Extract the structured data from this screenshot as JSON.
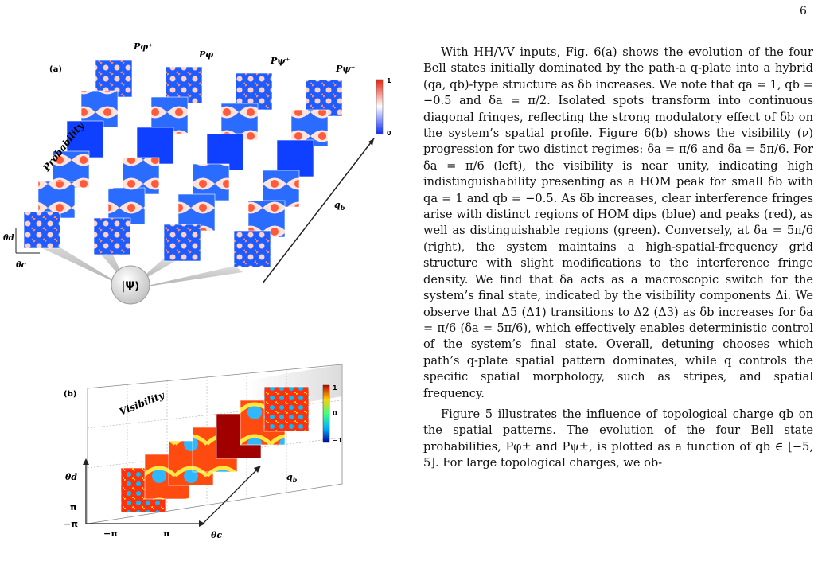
{
  "page_number": "6",
  "figure": {
    "a": {
      "panel_label": "(a)",
      "column_labels": [
        "Pφ⁺",
        "Pφ⁻",
        "Pψ⁺",
        "Pψ⁻"
      ],
      "axis_probability": "Probability",
      "axis_qb": "q_b",
      "axis_theta_d": "θd",
      "axis_theta_c": "θc",
      "colorbar_max": "1",
      "colorbar_min": "0",
      "state_label": "|Ψ⟩"
    },
    "b": {
      "panel_label": "(b)",
      "axis_visibility": "Visibility",
      "axis_qb": "q_b",
      "axis_theta_d": "θd",
      "axis_theta_c": "θc",
      "y_ticks": [
        "π",
        "−π"
      ],
      "x_ticks": [
        "−π",
        "π"
      ],
      "colorbar_ticks": [
        "1",
        "0",
        "−1"
      ]
    }
  },
  "text": {
    "paragraphs": [
      "With HH/VV inputs, Fig. 6(a) shows the evolution of the four Bell states initially dominated by the path-a q-plate into a hybrid (qa, qb)-type structure as δb increases. We note that qa = 1, qb = −0.5 and δa = π/2. Isolated spots transform into continuous diagonal fringes, reflecting the strong modulatory effect of δb on the system’s spatial profile. Figure 6(b) shows the visibility (ν) progression for two distinct regimes: δa = π/6 and δa = 5π/6. For δa = π/6 (left), the visibility is near unity, indicating high indistinguishability presenting as a HOM peak for small δb with qa = 1 and qb = −0.5. As δb increases, clear interference fringes arise with distinct regions of HOM dips (blue) and peaks (red), as well as distinguishable regions (green). Conversely, at δa = 5π/6 (right), the system maintains a high-spatial-frequency grid structure with slight modifications to the interference fringe density. We find that δa acts as a macroscopic switch for the system’s final state, indicated by the visibility components Δi. We observe that Δ5 (Δ1) transitions to Δ2 (Δ3) as δb increases for δa = π/6 (δa = 5π/6), which effectively enables deterministic control of the system’s final state. Overall, detuning chooses which path’s q-plate spatial pattern dominates, while q controls the specific spatial morphology, such as stripes, and spatial frequency.",
      "Figure 5 illustrates the influence of topological charge qb on the spatial patterns. The evolution of the four Bell state probabilities, Pφ± and Pψ±, is plotted as a function of qb ∈ [−5, 5]. For large topological charges, we ob-"
    ]
  }
}
